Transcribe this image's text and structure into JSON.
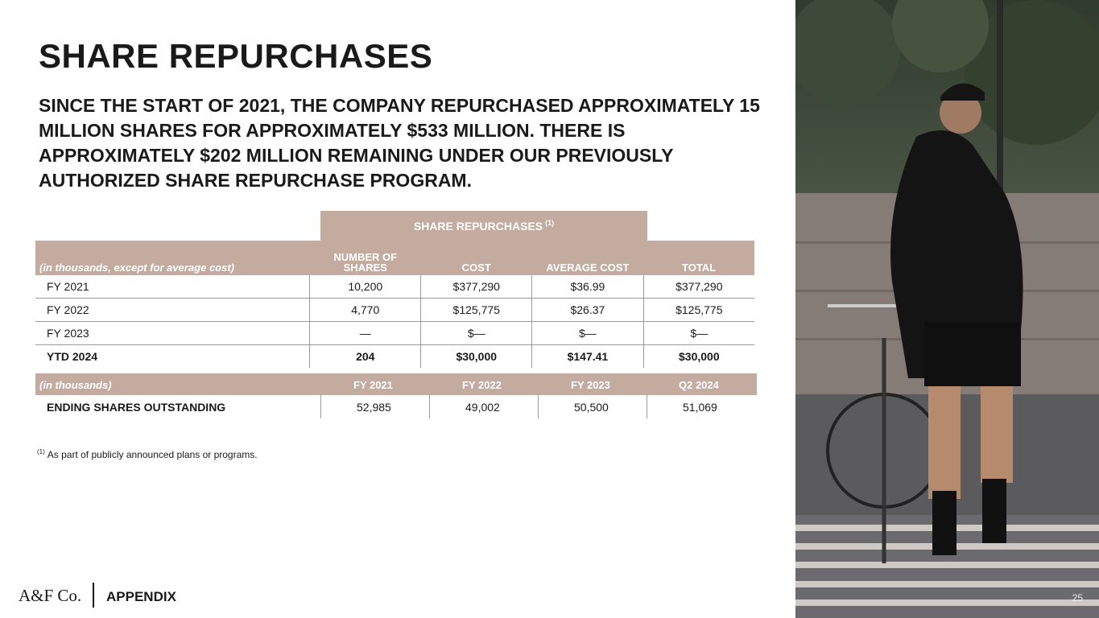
{
  "title": "SHARE REPURCHASES",
  "subtitle": "SINCE THE START OF 2021, THE COMPANY REPURCHASED APPROXIMATELY 15 MILLION SHARES FOR APPROXIMATELY $533 MILLION. THERE IS APPROXIMATELY $202 MILLION REMAINING UNDER OUR PREVIOUSLY AUTHORIZED SHARE REPURCHASE PROGRAM.",
  "table1": {
    "group_header": "SHARE REPURCHASES",
    "group_header_note": "(1)",
    "label_header": "(in thousands, except for average cost)",
    "col_headers": [
      "NUMBER OF SHARES",
      "COST",
      "AVERAGE COST",
      "TOTAL"
    ],
    "rows": [
      {
        "label": "FY 2021",
        "values": [
          "10,200",
          "$377,290",
          "$36.99",
          "$377,290"
        ]
      },
      {
        "label": "FY 2022",
        "values": [
          "4,770",
          "$125,775",
          "$26.37",
          "$125,775"
        ]
      },
      {
        "label": "FY 2023",
        "values": [
          "—",
          "$—",
          "$—",
          "$—"
        ]
      },
      {
        "label": "YTD 2024",
        "values": [
          "204",
          "$30,000",
          "$147.41",
          "$30,000"
        ]
      }
    ]
  },
  "table2": {
    "label_header": "(in thousands)",
    "col_headers": [
      "FY 2021",
      "FY 2022",
      "FY 2023",
      "Q2 2024"
    ],
    "row": {
      "label": "ENDING SHARES OUTSTANDING",
      "values": [
        "52,985",
        "49,002",
        "50,500",
        "51,069"
      ]
    }
  },
  "footnote": {
    "marker": "(1)",
    "text": "As part of publicly announced plans or programs."
  },
  "footer": {
    "logo": "A&F Co.",
    "section": "APPENDIX",
    "page_number": "25"
  },
  "colors": {
    "accent": "#c4aba0",
    "text": "#1a1a1a"
  }
}
